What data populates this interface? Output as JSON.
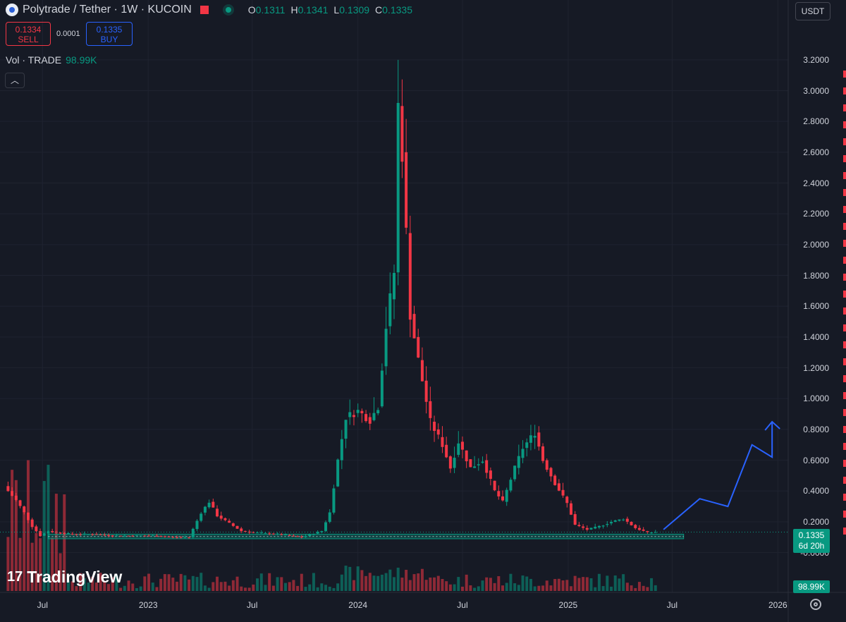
{
  "header": {
    "title": "Polytrade / Tether · 1W · KUCOIN",
    "ohlc": [
      {
        "key": "O",
        "value": "0.1311"
      },
      {
        "key": "H",
        "value": "0.1341"
      },
      {
        "key": "L",
        "value": "0.1309"
      },
      {
        "key": "C",
        "value": "0.1335"
      }
    ]
  },
  "trade": {
    "sell_price": "0.1334",
    "sell_label": "SELL",
    "spread": "0.0001",
    "buy_price": "0.1335",
    "buy_label": "BUY"
  },
  "volume_legend": {
    "label": "Vol · TRADE",
    "value": "98.99K"
  },
  "currency": "USDT",
  "price_tag": {
    "price": "0.1335",
    "countdown": "6d 20h"
  },
  "volume_tag": "98.99K",
  "branding": "TradingView",
  "colors": {
    "up": "#089981",
    "down": "#f23645",
    "arrow": "#2962ff",
    "background": "#161a25"
  },
  "icons": {
    "flag": "flag-icon",
    "collapse": "chevron-up-icon",
    "settings": "gear-icon",
    "logo": "tradingview-logo-icon"
  },
  "chart_data": {
    "type": "candlestick",
    "timeframe": "1W",
    "y_axis_ticks": [
      "3.2000",
      "3.0000",
      "2.8000",
      "2.6000",
      "2.4000",
      "2.2000",
      "2.0000",
      "1.8000",
      "1.6000",
      "1.4000",
      "1.2000",
      "1.0000",
      "0.8000",
      "0.6000",
      "0.4000",
      "0.2000",
      "-0.0000"
    ],
    "x_axis_ticks": [
      "Jul",
      "2023",
      "Jul",
      "2024",
      "Jul",
      "2025",
      "Jul",
      "2026"
    ],
    "ylim": [
      -0.02,
      3.3
    ],
    "close_series": [
      [
        "2022-05-02",
        0.4
      ],
      [
        "2022-05-16",
        0.34
      ],
      [
        "2022-05-30",
        0.26
      ],
      [
        "2022-06-13",
        0.17
      ],
      [
        "2022-06-27",
        0.11
      ],
      [
        "2022-07-11",
        0.14
      ],
      [
        "2022-07-25",
        0.13
      ],
      [
        "2022-08-22",
        0.12
      ],
      [
        "2022-09-26",
        0.12
      ],
      [
        "2022-10-31",
        0.11
      ],
      [
        "2022-12-05",
        0.11
      ],
      [
        "2023-01-09",
        0.11
      ],
      [
        "2023-02-13",
        0.1
      ],
      [
        "2023-03-13",
        0.1
      ],
      [
        "2023-04-03",
        0.26
      ],
      [
        "2023-04-17",
        0.33
      ],
      [
        "2023-05-01",
        0.24
      ],
      [
        "2023-05-22",
        0.19
      ],
      [
        "2023-06-12",
        0.14
      ],
      [
        "2023-07-03",
        0.13
      ],
      [
        "2023-08-14",
        0.12
      ],
      [
        "2023-09-25",
        0.1
      ],
      [
        "2023-10-30",
        0.14
      ],
      [
        "2023-11-13",
        0.26
      ],
      [
        "2023-11-27",
        0.6
      ],
      [
        "2023-12-11",
        0.88
      ],
      [
        "2024-01-01",
        0.92
      ],
      [
        "2024-01-22",
        0.86
      ],
      [
        "2024-02-05",
        0.95
      ],
      [
        "2024-02-19",
        1.47
      ],
      [
        "2024-03-04",
        1.82
      ],
      [
        "2024-03-11",
        2.9
      ],
      [
        "2024-03-18",
        2.6
      ],
      [
        "2024-04-01",
        1.55
      ],
      [
        "2024-04-15",
        1.25
      ],
      [
        "2024-05-06",
        0.85
      ],
      [
        "2024-05-27",
        0.7
      ],
      [
        "2024-06-10",
        0.55
      ],
      [
        "2024-06-24",
        0.72
      ],
      [
        "2024-07-15",
        0.55
      ],
      [
        "2024-08-05",
        0.6
      ],
      [
        "2024-08-26",
        0.4
      ],
      [
        "2024-09-09",
        0.33
      ],
      [
        "2024-09-30",
        0.55
      ],
      [
        "2024-10-14",
        0.68
      ],
      [
        "2024-11-04",
        0.78
      ],
      [
        "2024-11-18",
        0.6
      ],
      [
        "2024-12-09",
        0.45
      ],
      [
        "2024-12-30",
        0.32
      ],
      [
        "2025-01-13",
        0.18
      ],
      [
        "2025-02-03",
        0.15
      ],
      [
        "2025-02-24",
        0.17
      ],
      [
        "2025-03-17",
        0.2
      ],
      [
        "2025-04-07",
        0.22
      ],
      [
        "2025-04-28",
        0.16
      ],
      [
        "2025-05-19",
        0.13
      ],
      [
        "2025-06-02",
        0.1335
      ]
    ],
    "notable_candles": [
      {
        "date": "2024-03-11",
        "high": 3.2,
        "close": 2.9
      },
      {
        "date": "2025-06-02",
        "open": 0.1311,
        "high": 0.1341,
        "low": 0.1309,
        "close": 0.1335
      }
    ],
    "support_zone": {
      "low": 0.09,
      "high": 0.12,
      "from": "2022-07-11",
      "to": "2025-07-21"
    },
    "projection_path": [
      [
        "2025-06-16",
        0.15
      ],
      [
        "2025-08-18",
        0.35
      ],
      [
        "2025-10-06",
        0.3
      ],
      [
        "2025-11-17",
        0.7
      ],
      [
        "2025-12-22",
        0.62
      ],
      [
        "2025-12-22",
        0.85
      ]
    ],
    "volume_label": "Vol · TRADE",
    "volume_last": "98.99K"
  }
}
